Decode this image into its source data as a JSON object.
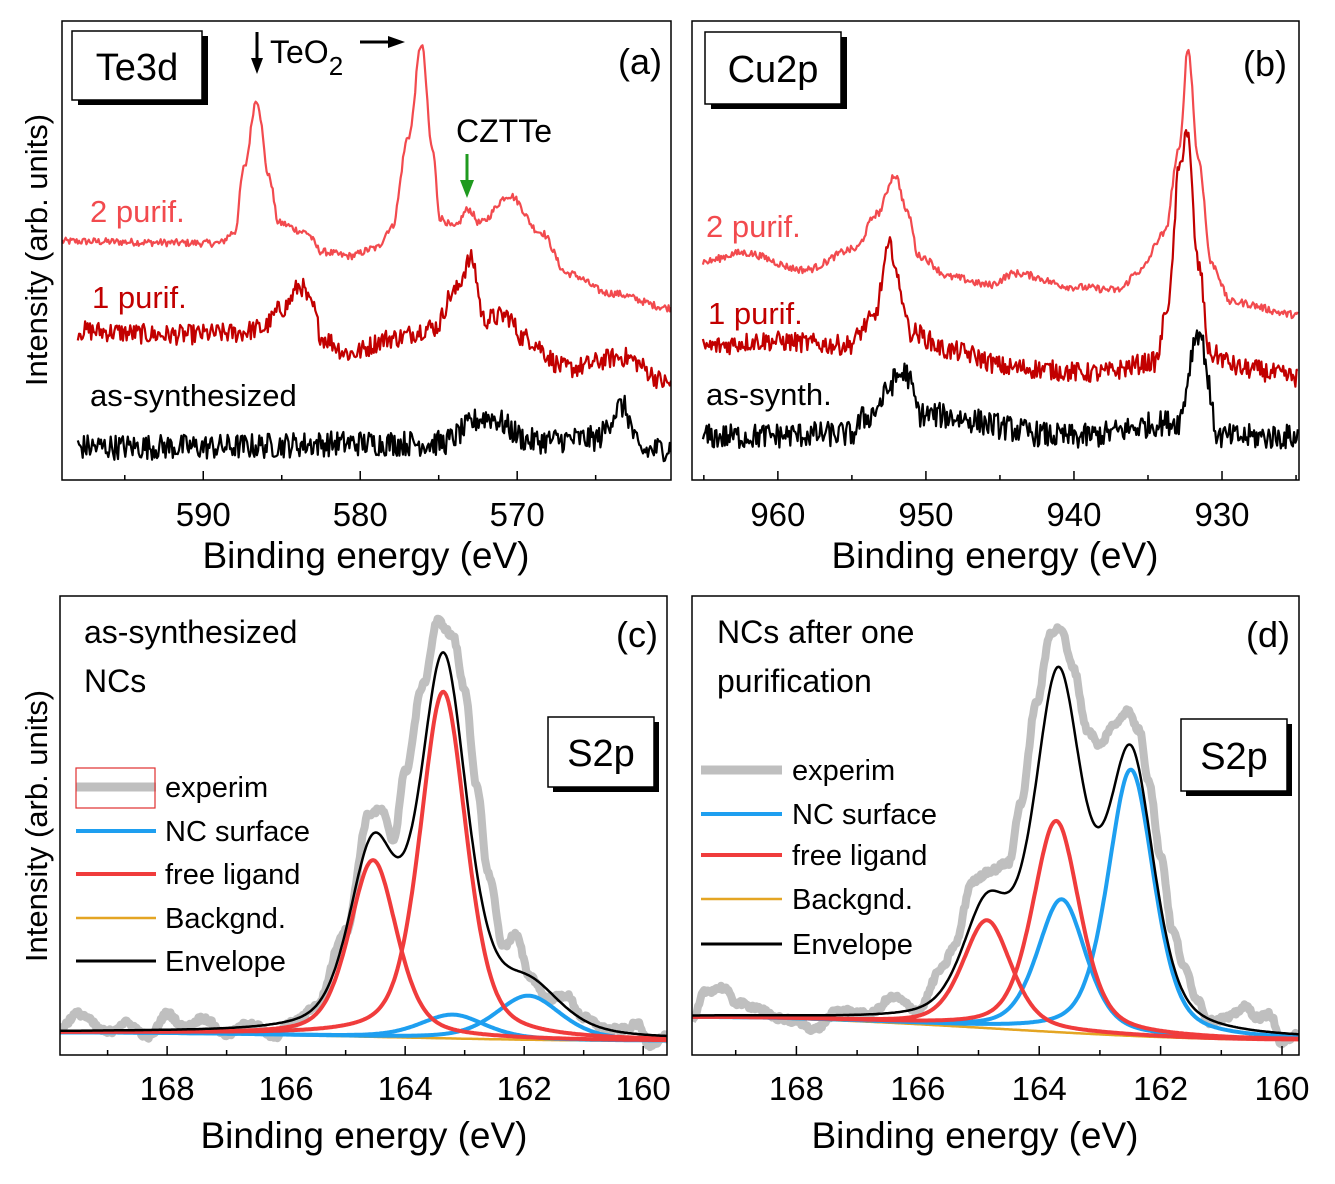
{
  "colors": {
    "two_purif": "#f24a4e",
    "one_purif": "#c20000",
    "as_synth": "#000000",
    "czte_green": "#1f9a1f",
    "experim": "#bfbfbf",
    "nc_surface": "#1e9ff0",
    "free_ligand": "#f03c3c",
    "backgnd": "#e4a523",
    "envelope": "#000000"
  },
  "chart_data": [
    {
      "id": "a",
      "type": "line",
      "panel_letter": "(a)",
      "element_label": "Te3d",
      "xlabel": "Binding energy (eV)",
      "ylabel": "Intensity (arb. units)",
      "xlim": [
        599,
        560.2
      ],
      "x_reversed": true,
      "ylim": [
        0,
        100
      ],
      "y_ticks_shown": false,
      "grid": false,
      "ticks": [
        590,
        580,
        570
      ],
      "tick_labels": [
        "590",
        "580",
        "570"
      ],
      "minor_ticks": [
        595,
        585,
        575,
        565
      ],
      "annotations": {
        "teo2_main": "TeO",
        "teo2_sub": "2",
        "teo2_peaks": [
          586.6,
          576.1
        ],
        "czte": "CZTTe",
        "czte_peak": 573.0
      },
      "series": [
        {
          "name": "2 purif.",
          "color_key": "two_purif",
          "x": [
            599,
            589,
            588,
            587.4,
            586.6,
            585.8,
            585.2,
            583.5,
            582.4,
            580.7,
            579,
            578,
            576.9,
            576.1,
            575.4,
            574.9,
            574,
            573.1,
            572.4,
            570.5,
            568.5,
            566.8,
            564.1,
            560.2
          ],
          "y": [
            52,
            51.6,
            54,
            68,
            82.8,
            66,
            56,
            54,
            49.7,
            48.8,
            50.5,
            55,
            75,
            95,
            72,
            57,
            55,
            59,
            56,
            62,
            54,
            45,
            40.7,
            37.5
          ]
        },
        {
          "name": "1 purif.",
          "color_key": "one_purif",
          "x": [
            598,
            592,
            588,
            586.3,
            584.9,
            583.8,
            583.1,
            582.4,
            580.7,
            578,
            575.2,
            574.1,
            572.9,
            572.1,
            570.7,
            569.6,
            566.8,
            563.3,
            560.2
          ],
          "y": [
            32.5,
            31.6,
            32,
            33,
            37.5,
            42.3,
            38,
            30.9,
            27.6,
            30.9,
            33.3,
            40.7,
            48,
            35,
            35.8,
            31,
            24.3,
            26.8,
            21
          ]
        },
        {
          "name": "as-synthesized",
          "color_key": "as_synth",
          "x": [
            598,
            590,
            580,
            575,
            571.9,
            569,
            565,
            563.3,
            562.1,
            560.2
          ],
          "y": [
            7.2,
            7.2,
            8,
            8,
            13.7,
            8.5,
            9,
            16,
            6.3,
            7
          ]
        }
      ]
    },
    {
      "id": "b",
      "type": "line",
      "panel_letter": "(b)",
      "element_label": "Cu2p",
      "xlabel": "Binding energy (eV)",
      "xlim": [
        965.8,
        924.8
      ],
      "x_reversed": true,
      "ylim": [
        0,
        100
      ],
      "y_ticks_shown": false,
      "grid": false,
      "ticks": [
        960,
        950,
        940,
        930
      ],
      "tick_labels": [
        "960",
        "950",
        "940",
        "930"
      ],
      "minor_ticks": [
        965,
        955,
        945,
        935,
        925
      ],
      "series": [
        {
          "name": "2 purif.",
          "color_key": "two_purif",
          "x": [
            965.1,
            962.4,
            958.2,
            954.8,
            953.3,
            952.1,
            951.2,
            950.5,
            948.3,
            945.7,
            944,
            939.8,
            937,
            935.6,
            933.9,
            932.9,
            932.3,
            931.6,
            930.7,
            929.4,
            924.85
          ],
          "y": [
            47.5,
            49.5,
            45.8,
            50.3,
            58,
            66.4,
            58,
            48.8,
            44.2,
            42.5,
            45,
            42,
            41.4,
            45.5,
            53.6,
            71.7,
            93.9,
            70,
            47,
            38.8,
            36
          ]
        },
        {
          "name": "1 purif.",
          "color_key": "one_purif",
          "x": [
            965.1,
            961,
            955.3,
            953.6,
            952.4,
            951.6,
            951.1,
            948.3,
            944,
            938.4,
            934.5,
            933.6,
            932.9,
            932.4,
            931.6,
            930.8,
            928.5,
            924.85
          ],
          "y": [
            29,
            30.3,
            29.4,
            34.8,
            50.8,
            40,
            32.3,
            28.1,
            24.4,
            23.3,
            25.7,
            38.8,
            67.5,
            76.3,
            47,
            27.4,
            24.2,
            22.4
          ]
        },
        {
          "name": "as-synth.",
          "color_key": "as_synth",
          "x": [
            965.1,
            955,
            954.2,
            951.4,
            950.3,
            940,
            933,
            931.6,
            930.2,
            924.85
          ],
          "y": [
            9.4,
            10,
            13.5,
            23.3,
            14.2,
            9.4,
            12.6,
            32.3,
            9.4,
            9.4
          ]
        }
      ]
    },
    {
      "id": "c",
      "type": "line",
      "panel_letter": "(c)",
      "element_label": "S2p",
      "sample_label": [
        "as-synthesized",
        "NCs"
      ],
      "xlabel": "Binding energy (eV)",
      "ylabel": "Intensity (arb. units)",
      "xlim": [
        169.8,
        159.6
      ],
      "x_reversed": true,
      "ylim": [
        0,
        100
      ],
      "y_ticks_shown": false,
      "grid": false,
      "ticks": [
        168,
        166,
        164,
        162,
        160
      ],
      "tick_labels": [
        "168",
        "166",
        "164",
        "162",
        "160"
      ],
      "minor_ticks": [
        169,
        167,
        165,
        163,
        161
      ],
      "legend": [
        "experim",
        "NC surface",
        "free ligand",
        "Backgnd.",
        "Envelope"
      ],
      "legend_placement": "middle-left",
      "experim": {
        "x": [
          169.8,
          169.5,
          169.0,
          168.7,
          168.3,
          168.0,
          167.7,
          167.4,
          167.0,
          166.6,
          166.2,
          165.9,
          165.5,
          165.0,
          164.6,
          164.4,
          164.2,
          164.0,
          163.7,
          163.45,
          163.2,
          163.0,
          162.8,
          162.6,
          162.35,
          162.15,
          161.9,
          161.6,
          161.3,
          161.0,
          160.6,
          160.3,
          160.1,
          159.9,
          159.6
        ],
        "y": [
          6,
          9,
          5,
          7,
          4,
          9,
          6,
          8,
          4.5,
          7,
          4,
          7,
          10.5,
          27,
          52.6,
          53.4,
          46.8,
          61.7,
          80.6,
          94.6,
          91.3,
          79.8,
          58.4,
          39.4,
          23.7,
          26.2,
          17.1,
          12.2,
          13,
          8.1,
          5.6,
          5.6,
          6.8,
          2.3,
          4
        ]
      },
      "backgnd": {
        "x": [
          169.8,
          159.6
        ],
        "y": [
          4.9,
          3.1
        ]
      },
      "nc_surface_peaks": [
        {
          "center": 163.2,
          "height": 5.2,
          "fwhm": 1.3
        },
        {
          "center": 161.93,
          "height": 9.6,
          "fwhm": 1.3
        }
      ],
      "free_ligand_peaks": [
        {
          "center": 164.54,
          "height": 38.5,
          "fwhm": 0.95
        },
        {
          "center": 163.36,
          "height": 75.5,
          "fwhm": 0.92
        }
      ]
    },
    {
      "id": "d",
      "type": "line",
      "panel_letter": "(d)",
      "element_label": "S2p",
      "sample_label": [
        "NCs after one",
        "purification"
      ],
      "xlabel": "Binding energy (eV)",
      "xlim": [
        169.72,
        159.72
      ],
      "x_reversed": true,
      "ylim": [
        0,
        100
      ],
      "y_ticks_shown": false,
      "grid": false,
      "ticks": [
        168,
        166,
        164,
        162,
        160
      ],
      "tick_labels": [
        "168",
        "166",
        "164",
        "162",
        "160"
      ],
      "minor_ticks": [
        169,
        167,
        165,
        163,
        161
      ],
      "legend": [
        "experim",
        "NC surface",
        "free ligand",
        "Backgnd.",
        "Envelope"
      ],
      "legend_placement": "middle-left",
      "experim": {
        "x": [
          169.72,
          169.5,
          169.2,
          169.0,
          168.7,
          168.3,
          168.0,
          167.7,
          167.3,
          166.8,
          166.4,
          166.0,
          165.6,
          165.4,
          165.1,
          164.8,
          164.5,
          164.3,
          164.05,
          163.8,
          163.65,
          163.45,
          163.2,
          163.0,
          162.8,
          162.55,
          162.35,
          162.2,
          162.0,
          161.8,
          161.6,
          161.4,
          161.2,
          160.9,
          160.6,
          160.4,
          160.2,
          160.0,
          159.75
        ],
        "y": [
          7.3,
          13.9,
          14.7,
          11.4,
          10.5,
          8,
          7.3,
          5.6,
          9.7,
          8.9,
          12.6,
          9.7,
          18.8,
          23.7,
          37.8,
          40.2,
          41.9,
          55,
          76.5,
          92.2,
          93,
          84.7,
          70.7,
          67.4,
          71.6,
          74.9,
          70.7,
          60,
          43.5,
          27,
          18.8,
          12.2,
          7.3,
          8.1,
          10.5,
          8.1,
          8.9,
          2.3,
          4.8
        ]
      },
      "backgnd": {
        "x": [
          169.72,
          159.72
        ],
        "y": [
          8.2,
          3.3
        ]
      },
      "nc_surface_peaks": [
        {
          "center": 163.63,
          "height": 29,
          "fwhm": 0.95
        },
        {
          "center": 162.49,
          "height": 58,
          "fwhm": 0.9
        }
      ],
      "free_ligand_peaks": [
        {
          "center": 164.86,
          "height": 23.5,
          "fwhm": 0.95
        },
        {
          "center": 163.72,
          "height": 46,
          "fwhm": 0.92
        }
      ]
    }
  ]
}
